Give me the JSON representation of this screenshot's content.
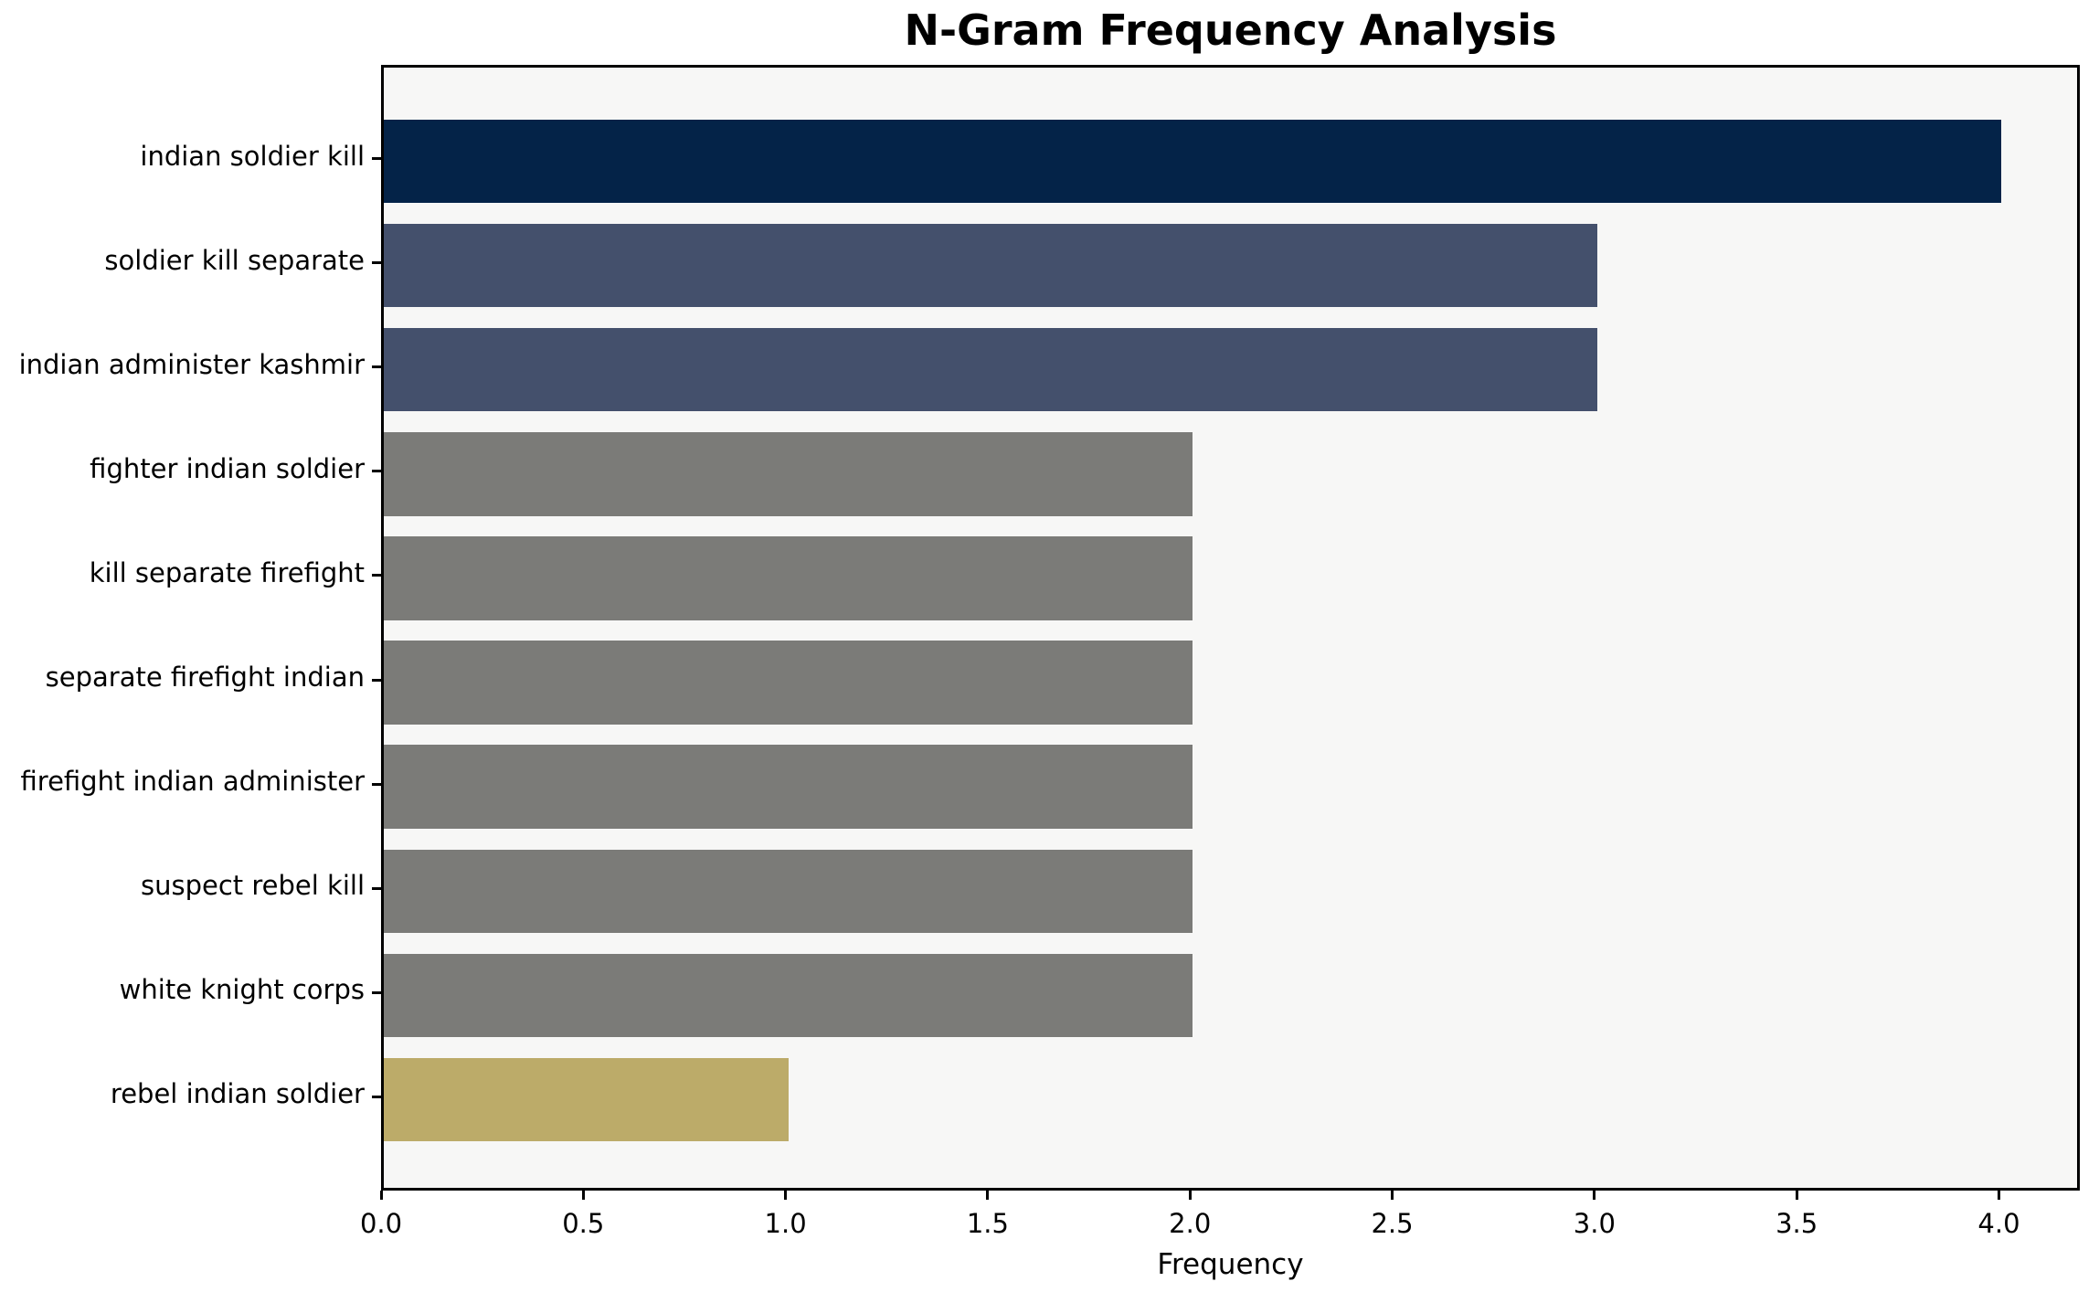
{
  "chart_data": {
    "type": "bar",
    "orientation": "horizontal",
    "title": "N-Gram Frequency Analysis",
    "xlabel": "Frequency",
    "ylabel": "",
    "categories": [
      "indian soldier kill",
      "soldier kill separate",
      "indian administer kashmir",
      "fighter indian soldier",
      "kill separate firefight",
      "separate firefight indian",
      "firefight indian administer",
      "suspect rebel kill",
      "white knight corps",
      "rebel indian soldier"
    ],
    "values": [
      4,
      3,
      3,
      2,
      2,
      2,
      2,
      2,
      2,
      1
    ],
    "bar_colors": [
      "#042348",
      "#44506c",
      "#44506c",
      "#7b7b78",
      "#7b7b78",
      "#7b7b78",
      "#7b7b78",
      "#7b7b78",
      "#7b7b78",
      "#bcab69"
    ],
    "x_ticks": [
      "0.0",
      "0.5",
      "1.0",
      "1.5",
      "2.0",
      "2.5",
      "3.0",
      "3.5",
      "4.0"
    ],
    "x_tick_values": [
      0,
      0.5,
      1,
      1.5,
      2,
      2.5,
      3,
      3.5,
      4
    ],
    "xlim": [
      0,
      4.2
    ],
    "bar_height_fraction": 0.8,
    "y_edge_padding": 0.9,
    "grid": false,
    "legend": null,
    "plot_bg_color": "#f7f7f6",
    "figure_bg_color": "#ffffff",
    "spine_color": "#000000",
    "text_color": "#000000"
  }
}
